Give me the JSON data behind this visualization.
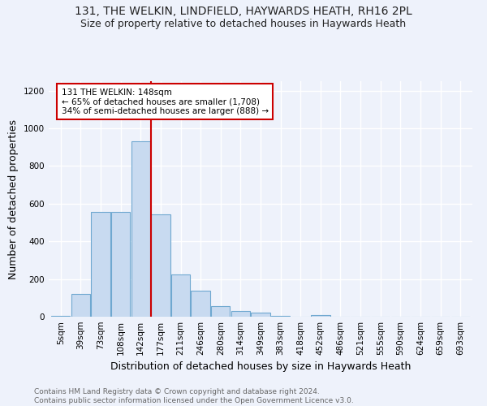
{
  "title_line1": "131, THE WELKIN, LINDFIELD, HAYWARDS HEATH, RH16 2PL",
  "title_line2": "Size of property relative to detached houses in Haywards Heath",
  "xlabel": "Distribution of detached houses by size in Haywards Heath",
  "ylabel": "Number of detached properties",
  "footnote": "Contains HM Land Registry data © Crown copyright and database right 2024.\nContains public sector information licensed under the Open Government Licence v3.0.",
  "bin_labels": [
    "5sqm",
    "39sqm",
    "73sqm",
    "108sqm",
    "142sqm",
    "177sqm",
    "211sqm",
    "246sqm",
    "280sqm",
    "314sqm",
    "349sqm",
    "383sqm",
    "418sqm",
    "452sqm",
    "486sqm",
    "521sqm",
    "555sqm",
    "590sqm",
    "624sqm",
    "659sqm",
    "693sqm"
  ],
  "bar_values": [
    5,
    120,
    555,
    555,
    930,
    545,
    225,
    140,
    55,
    30,
    20,
    5,
    2,
    8,
    0,
    0,
    0,
    0,
    0,
    0,
    0
  ],
  "bar_color": "#c8daf0",
  "bar_edge_color": "#6fa8d0",
  "vline_x": 4.5,
  "vline_color": "#cc0000",
  "annotation_text": "131 THE WELKIN: 148sqm\n← 65% of detached houses are smaller (1,708)\n34% of semi-detached houses are larger (888) →",
  "annotation_box_color": "#ffffff",
  "annotation_box_edge": "#cc0000",
  "ylim": [
    0,
    1250
  ],
  "yticks": [
    0,
    200,
    400,
    600,
    800,
    1000,
    1200
  ],
  "bg_color": "#eef2fb",
  "grid_color": "#ffffff",
  "title_fontsize": 10,
  "subtitle_fontsize": 9,
  "axis_label_fontsize": 9,
  "tick_fontsize": 7.5,
  "footnote_fontsize": 6.5
}
